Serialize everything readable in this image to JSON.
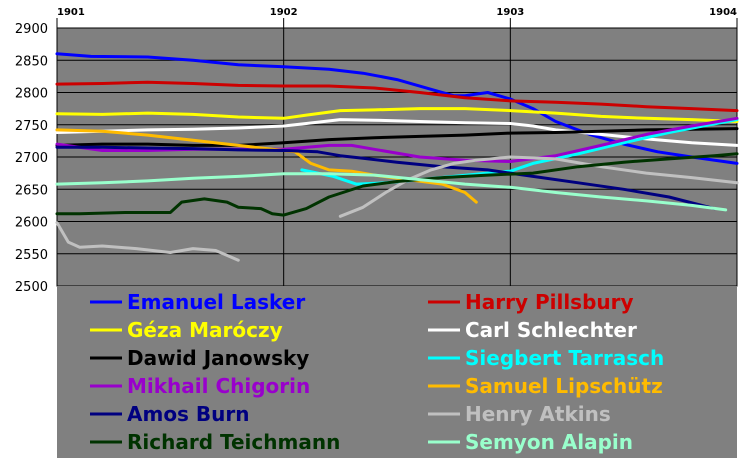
{
  "chart_data": {
    "type": "line",
    "title": "",
    "xlabel": "",
    "ylabel": "",
    "background": "#808080",
    "grid": true,
    "legend_position": "bottom",
    "xlim": [
      1901.0,
      1904.0
    ],
    "ylim": [
      2500,
      2900
    ],
    "x_ticks": [
      "1901",
      "1902",
      "1903",
      "1904"
    ],
    "y_ticks": [
      "2500",
      "2550",
      "2600",
      "2650",
      "2700",
      "2750",
      "2800",
      "2850",
      "2900"
    ],
    "series": [
      {
        "name": "Emanuel Lasker",
        "color": "#0000ff",
        "x": [
          1901.0,
          1901.15,
          1901.4,
          1901.6,
          1901.8,
          1902.0,
          1902.2,
          1902.35,
          1902.5,
          1902.65,
          1902.75,
          1902.8,
          1902.9,
          1903.0,
          1903.1,
          1903.2,
          1903.35,
          1903.5,
          1903.65,
          1903.8,
          1904.0
        ],
        "y": [
          2860,
          2856,
          2855,
          2850,
          2843,
          2840,
          2836,
          2830,
          2820,
          2805,
          2795,
          2795,
          2800,
          2790,
          2775,
          2755,
          2735,
          2720,
          2708,
          2700,
          2690
        ]
      },
      {
        "name": "Harry Pillsbury",
        "color": "#cc0000",
        "x": [
          1901.0,
          1901.2,
          1901.4,
          1901.6,
          1901.8,
          1902.0,
          1902.2,
          1902.4,
          1902.6,
          1902.8,
          1903.0,
          1903.2,
          1903.4,
          1903.6,
          1903.8,
          1904.0
        ],
        "y": [
          2813,
          2814,
          2816,
          2814,
          2811,
          2810,
          2810,
          2807,
          2800,
          2792,
          2787,
          2785,
          2782,
          2778,
          2775,
          2772
        ]
      },
      {
        "name": "Géza Maróczy",
        "color": "#ffff00",
        "x": [
          1901.0,
          1901.2,
          1901.4,
          1901.6,
          1901.8,
          1902.0,
          1902.1,
          1902.25,
          1902.4,
          1902.6,
          1902.8,
          1903.0,
          1903.2,
          1903.4,
          1903.6,
          1903.8,
          1904.0
        ],
        "y": [
          2767,
          2766,
          2768,
          2766,
          2762,
          2760,
          2765,
          2772,
          2773,
          2775,
          2775,
          2772,
          2768,
          2763,
          2760,
          2758,
          2755
        ]
      },
      {
        "name": "Carl Schlechter",
        "color": "#ffffff",
        "x": [
          1901.0,
          1901.2,
          1901.4,
          1901.6,
          1901.8,
          1902.0,
          1902.1,
          1902.25,
          1902.4,
          1902.6,
          1902.8,
          1903.0,
          1903.1,
          1903.2,
          1903.4,
          1903.6,
          1903.8,
          1904.0
        ],
        "y": [
          2738,
          2740,
          2742,
          2743,
          2745,
          2748,
          2752,
          2758,
          2757,
          2755,
          2753,
          2752,
          2748,
          2742,
          2735,
          2728,
          2722,
          2718
        ]
      },
      {
        "name": "Dawid Janowsky",
        "color": "#000000",
        "x": [
          1901.0,
          1901.2,
          1901.4,
          1901.6,
          1901.8,
          1902.0,
          1902.2,
          1902.4,
          1902.6,
          1902.8,
          1903.0,
          1903.2,
          1903.4,
          1903.6,
          1903.8,
          1904.0
        ],
        "y": [
          2718,
          2720,
          2720,
          2718,
          2718,
          2722,
          2727,
          2730,
          2732,
          2734,
          2737,
          2738,
          2740,
          2742,
          2743,
          2744
        ]
      },
      {
        "name": "Siegbert Tarrasch",
        "color": "#00ffff",
        "x": [
          1902.08,
          1902.15,
          1902.22,
          1902.32,
          1902.45,
          1902.6,
          1902.75,
          1902.9,
          1903.0,
          1903.1,
          1903.3,
          1903.5,
          1903.7,
          1903.85,
          1904.0
        ],
        "y": [
          2680,
          2675,
          2670,
          2658,
          2660,
          2665,
          2670,
          2675,
          2678,
          2690,
          2705,
          2722,
          2738,
          2748,
          2758
        ]
      },
      {
        "name": "Mikhail Chigorin",
        "color": "#9900cc",
        "x": [
          1901.0,
          1901.2,
          1901.4,
          1901.6,
          1901.8,
          1902.0,
          1902.2,
          1902.3,
          1902.4,
          1902.6,
          1902.8,
          1903.0,
          1903.2,
          1903.4,
          1903.6,
          1903.8,
          1904.0
        ],
        "y": [
          2720,
          2710,
          2710,
          2712,
          2712,
          2712,
          2718,
          2718,
          2712,
          2700,
          2695,
          2693,
          2702,
          2718,
          2735,
          2748,
          2760
        ]
      },
      {
        "name": "Samuel Lipschütz",
        "color": "#ffbb00",
        "x": [
          1901.0,
          1901.2,
          1901.4,
          1901.6,
          1901.8,
          1901.95,
          1902.05,
          1902.12,
          1902.2,
          1902.3,
          1902.4,
          1902.55,
          1902.7,
          1902.8,
          1902.85
        ],
        "y": [
          2742,
          2740,
          2734,
          2726,
          2718,
          2712,
          2708,
          2690,
          2680,
          2678,
          2672,
          2665,
          2658,
          2645,
          2630
        ]
      },
      {
        "name": "Amos Burn",
        "color": "#000080",
        "x": [
          1901.0,
          1901.2,
          1901.4,
          1901.6,
          1901.8,
          1902.0,
          1902.15,
          1902.25,
          1902.35,
          1902.5,
          1902.7,
          1902.9,
          1903.1,
          1903.3,
          1903.5,
          1903.7,
          1903.9
        ],
        "y": [
          2715,
          2715,
          2714,
          2713,
          2711,
          2710,
          2708,
          2702,
          2698,
          2692,
          2685,
          2680,
          2670,
          2660,
          2650,
          2638,
          2620
        ]
      },
      {
        "name": "Henry Atkins",
        "color": "#c0c0c0",
        "x": [
          1901.0,
          1901.05,
          1901.1,
          1901.2,
          1901.35,
          1901.5,
          1901.6,
          1901.7,
          1901.8
        ],
        "y": [
          2598,
          2568,
          2560,
          2562,
          2558,
          2552,
          2558,
          2555,
          2540
        ]
      },
      {
        "name": "Henry Atkins (later)",
        "color": "#c0c0c0",
        "x": [
          1902.25,
          1902.35,
          1902.45,
          1902.55,
          1902.65,
          1902.75,
          1902.85,
          1903.0,
          1903.2,
          1903.4,
          1903.6,
          1903.8,
          1904.0
        ],
        "y": [
          2608,
          2622,
          2645,
          2665,
          2680,
          2690,
          2695,
          2700,
          2697,
          2685,
          2675,
          2668,
          2660
        ]
      },
      {
        "name": "Richard Teichmann",
        "color": "#003300",
        "x": [
          1901.0,
          1901.1,
          1901.3,
          1901.5,
          1901.55,
          1901.65,
          1901.75,
          1901.8,
          1901.9,
          1901.95,
          1902.0,
          1902.1,
          1902.2,
          1902.35,
          1902.5,
          1902.7,
          1902.9,
          1903.1,
          1903.3,
          1903.5,
          1903.7,
          1903.9,
          1904.0
        ],
        "y": [
          2612,
          2612,
          2614,
          2614,
          2630,
          2635,
          2630,
          2622,
          2620,
          2612,
          2610,
          2620,
          2638,
          2655,
          2662,
          2668,
          2672,
          2675,
          2685,
          2692,
          2697,
          2702,
          2705
        ]
      },
      {
        "name": "Semyon Alapin",
        "color": "#99ffcc",
        "x": [
          1901.0,
          1901.2,
          1901.4,
          1901.6,
          1901.8,
          1902.0,
          1902.2,
          1902.4,
          1902.6,
          1902.8,
          1903.0,
          1903.2,
          1903.4,
          1903.6,
          1903.8,
          1903.95
        ],
        "y": [
          2658,
          2660,
          2663,
          2667,
          2670,
          2674,
          2674,
          2672,
          2665,
          2658,
          2653,
          2645,
          2638,
          2632,
          2625,
          2618
        ]
      }
    ],
    "legend": [
      {
        "label": "Emanuel Lasker",
        "color": "#0000ff"
      },
      {
        "label": "Harry Pillsbury",
        "color": "#cc0000"
      },
      {
        "label": "Géza Maróczy",
        "color": "#ffff00"
      },
      {
        "label": "Carl Schlechter",
        "color": "#ffffff"
      },
      {
        "label": "Dawid Janowsky",
        "color": "#000000"
      },
      {
        "label": "Siegbert Tarrasch",
        "color": "#00ffff"
      },
      {
        "label": "Mikhail Chigorin",
        "color": "#9900cc"
      },
      {
        "label": "Samuel Lipschütz",
        "color": "#ffbb00"
      },
      {
        "label": "Amos Burn",
        "color": "#000080"
      },
      {
        "label": "Henry Atkins",
        "color": "#c0c0c0"
      },
      {
        "label": "Richard Teichmann",
        "color": "#003300"
      },
      {
        "label": "Semyon Alapin",
        "color": "#99ffcc"
      }
    ]
  }
}
